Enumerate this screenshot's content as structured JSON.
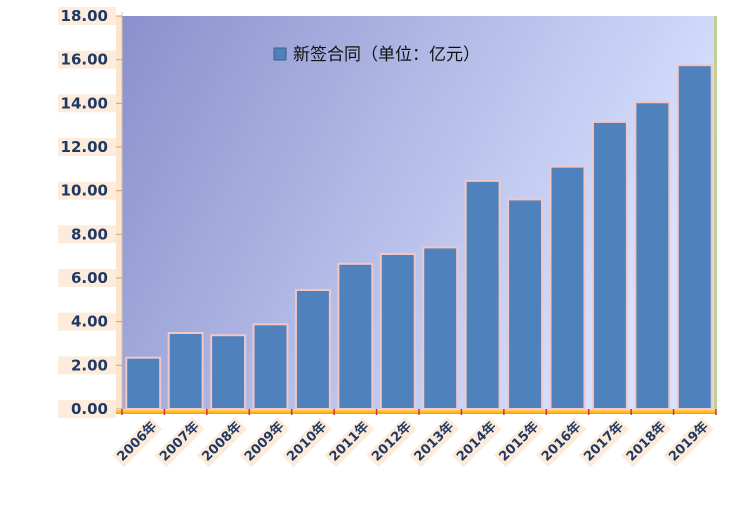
{
  "chart_data": {
    "type": "bar",
    "categories": [
      "2006年",
      "2007年",
      "2008年",
      "2009年",
      "2010年",
      "2011年",
      "2012年",
      "2013年",
      "2014年",
      "2015年",
      "2016年",
      "2017年",
      "2018年",
      "2019年"
    ],
    "series": [
      {
        "name": "新签合同（单位：亿元）",
        "values": [
          2.35,
          3.48,
          3.38,
          3.88,
          5.45,
          6.65,
          7.1,
          7.4,
          10.45,
          9.6,
          11.1,
          13.15,
          14.05,
          15.75
        ]
      }
    ],
    "yticks": [
      "0.00",
      "2.00",
      "4.00",
      "6.00",
      "8.00",
      "10.00",
      "12.00",
      "14.00",
      "16.00",
      "18.00"
    ],
    "ylim": [
      0,
      18
    ],
    "grid": false,
    "legend_position": "top-center",
    "colors": {
      "bar": "#4f81bd",
      "bar_border": "#f2c6c6",
      "plot_gradient_start": "#8a90cc",
      "plot_gradient_end": "#d8e2ff",
      "x_axis": "#ffd200",
      "y_axis_band": "#fde4cc",
      "tick_text": "#1f3864"
    }
  }
}
